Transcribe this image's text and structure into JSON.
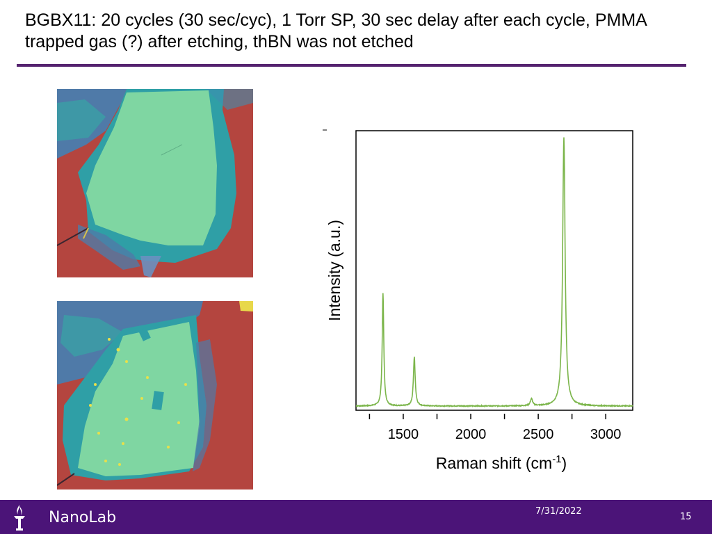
{
  "slide": {
    "title": "BGBX11: 20 cycles (30 sec/cyc), 1 Torr SP, 30 sec delay after each cycle, PMMA trapped gas (?) after etching, thBN was not etched",
    "accent_color": "#55236f"
  },
  "images": {
    "before": {
      "icon": "optical-micrograph",
      "colors": {
        "substrate": "#b4453f",
        "graphene": "#7fd6a2",
        "multilayer": "#2f9fa6",
        "thick": "#5b74a8"
      }
    },
    "after": {
      "icon": "optical-micrograph",
      "colors": {
        "substrate": "#b4453f",
        "graphene": "#7fd6a2",
        "multilayer": "#2f9fa6",
        "thick": "#5b74a8",
        "bubbles": "#e8e04a"
      }
    }
  },
  "chart_data": {
    "type": "line",
    "xlabel": "Raman shift (cm",
    "xlabel_superscript": "-1",
    "xlabel_close": ")",
    "ylabel": "Intensity (a.u.)",
    "xlim": [
      1150,
      3200
    ],
    "ylim": [
      0,
      1
    ],
    "xticks": [
      1500,
      2000,
      2500,
      3000
    ],
    "minor_xticks": [
      1250,
      1750,
      2250,
      2750,
      3250
    ],
    "grid": false,
    "line_color": "#7bb54a",
    "baseline": 0.015,
    "noise": 0.003,
    "peaks": [
      {
        "center": 1350,
        "height": 0.405,
        "width": 7
      },
      {
        "center": 1582,
        "height": 0.175,
        "width": 8
      },
      {
        "center": 2450,
        "height": 0.025,
        "width": 10
      },
      {
        "center": 2690,
        "height": 0.96,
        "width": 11
      }
    ]
  },
  "footer": {
    "brand": "NanoLab",
    "date": "7/31/2022",
    "slide_number": "15",
    "logo_icon": "nyu-torch-icon",
    "background": "#4b1478"
  }
}
